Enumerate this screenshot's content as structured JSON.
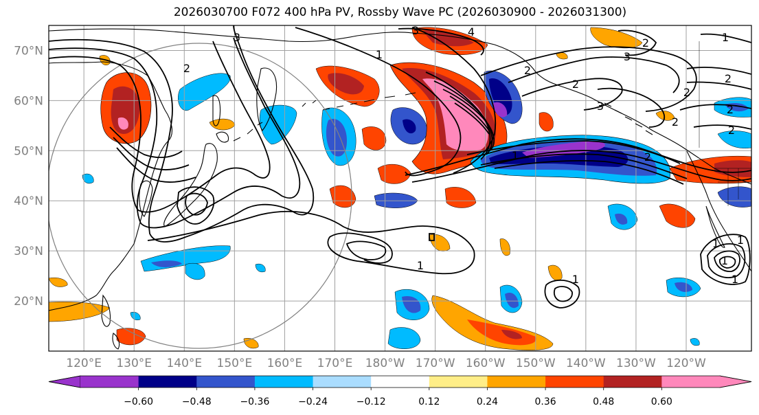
{
  "title": "2026030700 F072 400 hPa PV, Rossby Wave PC (2026030900 - 2026031300)",
  "lat_labels": [
    "70°N",
    "60°N",
    "50°N",
    "40°N",
    "30°N",
    "20°N"
  ],
  "lat_values": [
    70,
    60,
    50,
    40,
    30,
    20
  ],
  "lon_labels": [
    "120°E",
    "130°E",
    "140°E",
    "150°E",
    "160°E",
    "170°E",
    "180°W",
    "170°W",
    "160°W",
    "150°W",
    "140°W",
    "130°W",
    "120°W"
  ],
  "lon_values": [
    120,
    130,
    140,
    150,
    160,
    170,
    180,
    190,
    200,
    210,
    220,
    230,
    240
  ],
  "map_extent": {
    "lon": [
      113,
      253
    ],
    "lat": [
      10,
      75
    ]
  },
  "colorbar": {
    "colors": [
      "#9933cc",
      "#000088",
      "#3355cc",
      "#00bbff",
      "#aaddff",
      "#ffffff",
      "#ffee88",
      "#ffa500",
      "#ff4400",
      "#b22222",
      "#ff88bb"
    ],
    "tick_labels": [
      "−0.60",
      "−0.48",
      "−0.36",
      "−0.24",
      "−0.12",
      "0.12",
      "0.24",
      "0.36",
      "0.48",
      "0.60"
    ],
    "tick_values": [
      -0.6,
      -0.48,
      -0.36,
      -0.24,
      -0.12,
      0.12,
      0.24,
      0.36,
      0.48,
      0.6
    ]
  },
  "contour_labels": [
    "3",
    "4",
    "1",
    "2",
    "2",
    "2",
    "3",
    "2",
    "2",
    "2",
    "1",
    "1",
    "1",
    "2",
    "2",
    "3",
    "3",
    "1",
    "2",
    "2",
    "1",
    "1",
    "1",
    "1"
  ]
}
